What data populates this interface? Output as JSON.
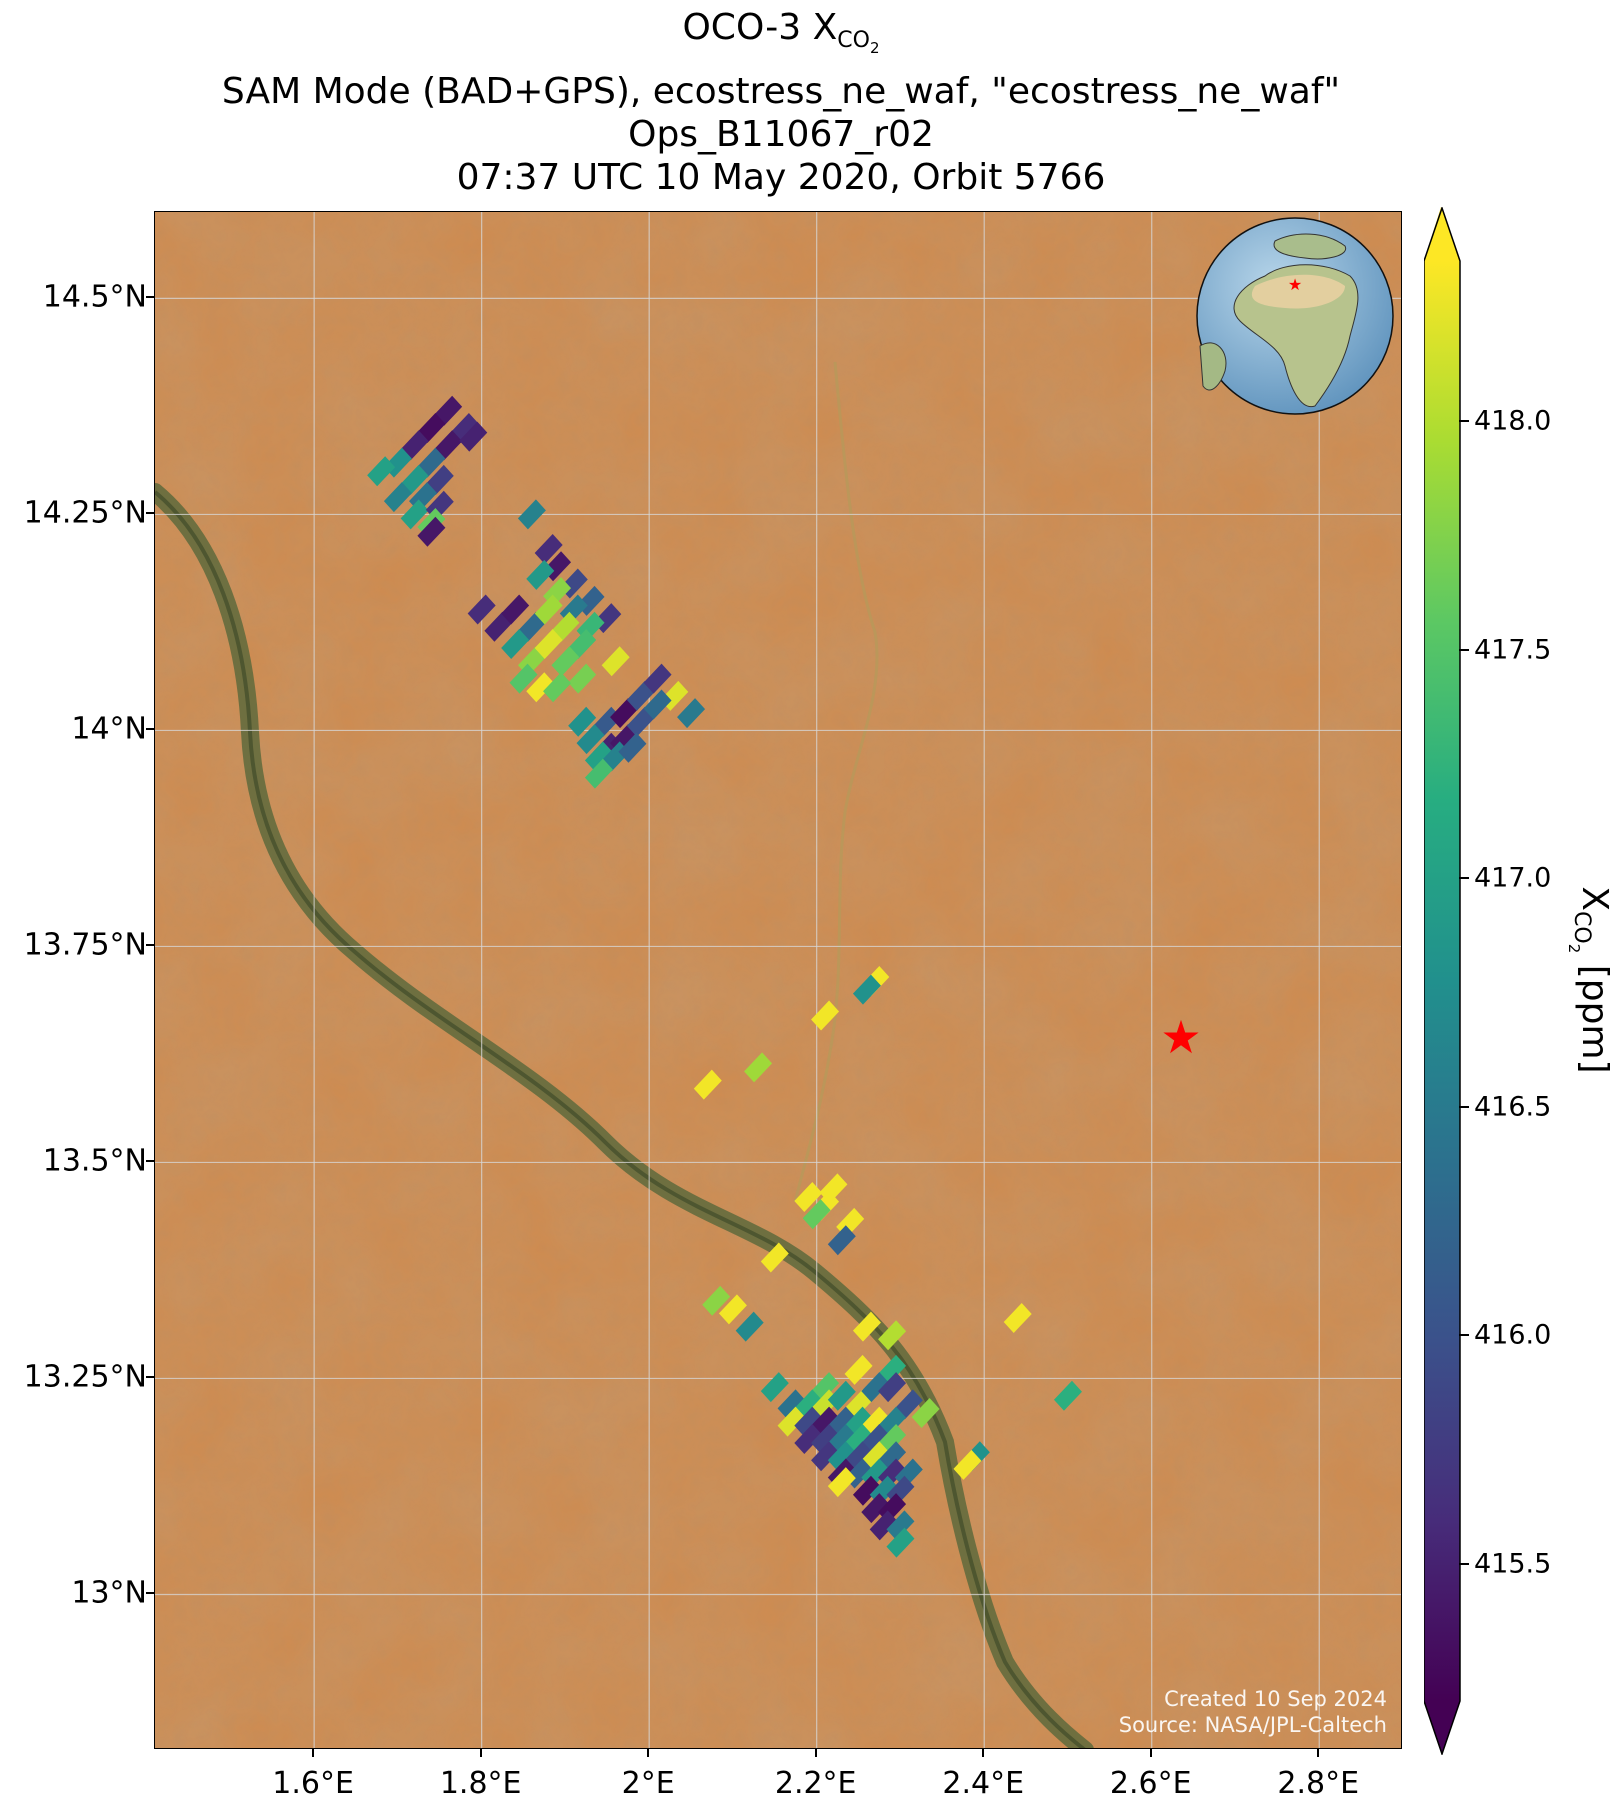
{
  "title": {
    "line1_prefix": "OCO-3 X",
    "line1_sub": "CO",
    "line1_sub2": "2",
    "line2": "SAM Mode (BAD+GPS), ecostress_ne_waf, \"ecostress_ne_waf\"",
    "line3": "Ops_B11067_r02",
    "line4": "07:37 UTC 10 May 2020, Orbit 5766"
  },
  "credits": {
    "created": "Created 10 Sep 2024",
    "source": "Source: NASA/JPL-Caltech"
  },
  "colors": {
    "terrain": "#cf8a4e",
    "river": "#5e6a3c",
    "target_star": "#ff0000",
    "grid": "#d8d8d8"
  },
  "icons": {
    "globe": "globe-inset-icon",
    "target": "star-icon"
  },
  "chart_data": {
    "type": "map",
    "lon_range": [
      1.41,
      2.9
    ],
    "lat_range": [
      12.82,
      14.6
    ],
    "x_ticks": [
      {
        "value": 1.6,
        "label": "1.6°E"
      },
      {
        "value": 1.8,
        "label": "1.8°E"
      },
      {
        "value": 2.0,
        "label": "2°E"
      },
      {
        "value": 2.2,
        "label": "2.2°E"
      },
      {
        "value": 2.4,
        "label": "2.4°E"
      },
      {
        "value": 2.6,
        "label": "2.6°E"
      },
      {
        "value": 2.8,
        "label": "2.8°E"
      }
    ],
    "y_ticks": [
      {
        "value": 14.5,
        "label": "14.5°N"
      },
      {
        "value": 14.25,
        "label": "14.25°N"
      },
      {
        "value": 14.0,
        "label": "14°N"
      },
      {
        "value": 13.75,
        "label": "13.75°N"
      },
      {
        "value": 13.5,
        "label": "13.5°N"
      },
      {
        "value": 13.25,
        "label": "13.25°N"
      },
      {
        "value": 13.0,
        "label": "13°N"
      }
    ],
    "grid": true,
    "target": {
      "lon": 2.635,
      "lat": 13.645
    },
    "colorbar": {
      "label_prefix": "X",
      "label_sub": "CO",
      "label_sub2": "2",
      "label_suffix": " [ppm]",
      "vmin": 415.2,
      "vmax": 418.35,
      "colormap": "viridis",
      "extend": "both",
      "ticks": [
        {
          "value": 415.5,
          "label": "415.5"
        },
        {
          "value": 416.0,
          "label": "416.0"
        },
        {
          "value": 416.5,
          "label": "416.5"
        },
        {
          "value": 417.0,
          "label": "417.0"
        },
        {
          "value": 417.5,
          "label": "417.5"
        },
        {
          "value": 418.0,
          "label": "418.0"
        }
      ]
    },
    "soundings": [
      {
        "lon": 1.76,
        "lat": 14.37,
        "xco2": 415.4
      },
      {
        "lon": 1.78,
        "lat": 14.35,
        "xco2": 415.6
      },
      {
        "lon": 1.74,
        "lat": 14.35,
        "xco2": 415.3
      },
      {
        "lon": 1.72,
        "lat": 14.33,
        "xco2": 415.5
      },
      {
        "lon": 1.76,
        "lat": 14.33,
        "xco2": 415.4
      },
      {
        "lon": 1.7,
        "lat": 14.31,
        "xco2": 416.8
      },
      {
        "lon": 1.74,
        "lat": 14.31,
        "xco2": 416.3
      },
      {
        "lon": 1.79,
        "lat": 14.34,
        "xco2": 415.5
      },
      {
        "lon": 1.68,
        "lat": 14.3,
        "xco2": 417.0
      },
      {
        "lon": 1.72,
        "lat": 14.29,
        "xco2": 416.9
      },
      {
        "lon": 1.75,
        "lat": 14.29,
        "xco2": 415.8
      },
      {
        "lon": 1.7,
        "lat": 14.27,
        "xco2": 416.6
      },
      {
        "lon": 1.73,
        "lat": 14.27,
        "xco2": 416.4
      },
      {
        "lon": 1.72,
        "lat": 14.25,
        "xco2": 417.0
      },
      {
        "lon": 1.75,
        "lat": 14.26,
        "xco2": 415.7
      },
      {
        "lon": 1.74,
        "lat": 14.24,
        "xco2": 417.6
      },
      {
        "lon": 1.74,
        "lat": 14.23,
        "xco2": 415.4
      },
      {
        "lon": 1.86,
        "lat": 14.25,
        "xco2": 416.6
      },
      {
        "lon": 1.88,
        "lat": 14.21,
        "xco2": 415.6
      },
      {
        "lon": 1.89,
        "lat": 14.19,
        "xco2": 415.4
      },
      {
        "lon": 1.91,
        "lat": 14.17,
        "xco2": 415.9
      },
      {
        "lon": 1.93,
        "lat": 14.15,
        "xco2": 416.2
      },
      {
        "lon": 1.95,
        "lat": 14.13,
        "xco2": 415.7
      },
      {
        "lon": 1.87,
        "lat": 14.18,
        "xco2": 416.9
      },
      {
        "lon": 1.89,
        "lat": 14.16,
        "xco2": 417.8
      },
      {
        "lon": 1.91,
        "lat": 14.14,
        "xco2": 416.5
      },
      {
        "lon": 1.93,
        "lat": 14.12,
        "xco2": 417.3
      },
      {
        "lon": 1.8,
        "lat": 14.14,
        "xco2": 415.6
      },
      {
        "lon": 1.82,
        "lat": 14.12,
        "xco2": 415.5
      },
      {
        "lon": 1.84,
        "lat": 14.14,
        "xco2": 415.4
      },
      {
        "lon": 1.86,
        "lat": 14.12,
        "xco2": 416.3
      },
      {
        "lon": 1.88,
        "lat": 14.14,
        "xco2": 417.9
      },
      {
        "lon": 1.9,
        "lat": 14.12,
        "xco2": 418.0
      },
      {
        "lon": 1.92,
        "lat": 14.1,
        "xco2": 417.4
      },
      {
        "lon": 1.84,
        "lat": 14.1,
        "xco2": 416.9
      },
      {
        "lon": 1.86,
        "lat": 14.08,
        "xco2": 417.8
      },
      {
        "lon": 1.88,
        "lat": 14.1,
        "xco2": 418.2
      },
      {
        "lon": 1.9,
        "lat": 14.08,
        "xco2": 417.6
      },
      {
        "lon": 1.92,
        "lat": 14.06,
        "xco2": 417.7
      },
      {
        "lon": 1.85,
        "lat": 14.06,
        "xco2": 417.5
      },
      {
        "lon": 1.87,
        "lat": 14.05,
        "xco2": 418.3
      },
      {
        "lon": 1.89,
        "lat": 14.05,
        "xco2": 417.6
      },
      {
        "lon": 1.96,
        "lat": 14.08,
        "xco2": 418.2
      },
      {
        "lon": 1.95,
        "lat": 14.01,
        "xco2": 416.1
      },
      {
        "lon": 1.97,
        "lat": 14.02,
        "xco2": 415.3
      },
      {
        "lon": 1.99,
        "lat": 14.04,
        "xco2": 416.0
      },
      {
        "lon": 2.01,
        "lat": 14.06,
        "xco2": 415.7
      },
      {
        "lon": 2.03,
        "lat": 14.04,
        "xco2": 418.2
      },
      {
        "lon": 2.05,
        "lat": 14.02,
        "xco2": 416.5
      },
      {
        "lon": 1.93,
        "lat": 13.99,
        "xco2": 416.7
      },
      {
        "lon": 1.95,
        "lat": 13.98,
        "xco2": 415.5
      },
      {
        "lon": 1.97,
        "lat": 13.99,
        "xco2": 415.4
      },
      {
        "lon": 1.99,
        "lat": 14.01,
        "xco2": 416.0
      },
      {
        "lon": 2.01,
        "lat": 14.03,
        "xco2": 416.3
      },
      {
        "lon": 1.92,
        "lat": 14.01,
        "xco2": 416.8
      },
      {
        "lon": 1.94,
        "lat": 13.97,
        "xco2": 417.0
      },
      {
        "lon": 1.96,
        "lat": 13.97,
        "xco2": 416.6
      },
      {
        "lon": 1.98,
        "lat": 13.98,
        "xco2": 416.2
      },
      {
        "lon": 1.94,
        "lat": 13.95,
        "xco2": 417.4
      },
      {
        "lon": 2.27,
        "lat": 13.71,
        "xco2": 418.3
      },
      {
        "lon": 2.26,
        "lat": 13.7,
        "xco2": 416.8
      },
      {
        "lon": 2.21,
        "lat": 13.67,
        "xco2": 418.3
      },
      {
        "lon": 2.13,
        "lat": 13.61,
        "xco2": 417.9
      },
      {
        "lon": 2.07,
        "lat": 13.59,
        "xco2": 418.3
      },
      {
        "lon": 2.19,
        "lat": 13.46,
        "xco2": 418.3
      },
      {
        "lon": 2.21,
        "lat": 13.45,
        "xco2": 418.3
      },
      {
        "lon": 2.22,
        "lat": 13.47,
        "xco2": 418.3
      },
      {
        "lon": 2.2,
        "lat": 13.44,
        "xco2": 417.6
      },
      {
        "lon": 2.24,
        "lat": 13.43,
        "xco2": 418.3
      },
      {
        "lon": 2.23,
        "lat": 13.41,
        "xco2": 416.2
      },
      {
        "lon": 2.15,
        "lat": 13.39,
        "xco2": 418.3
      },
      {
        "lon": 2.08,
        "lat": 13.34,
        "xco2": 417.8
      },
      {
        "lon": 2.1,
        "lat": 13.33,
        "xco2": 418.3
      },
      {
        "lon": 2.12,
        "lat": 13.31,
        "xco2": 416.7
      },
      {
        "lon": 2.26,
        "lat": 13.31,
        "xco2": 418.3
      },
      {
        "lon": 2.29,
        "lat": 13.3,
        "xco2": 418.0
      },
      {
        "lon": 2.44,
        "lat": 13.32,
        "xco2": 418.3
      },
      {
        "lon": 2.25,
        "lat": 13.26,
        "xco2": 418.3
      },
      {
        "lon": 2.29,
        "lat": 13.26,
        "xco2": 417.2
      },
      {
        "lon": 2.21,
        "lat": 13.24,
        "xco2": 417.5
      },
      {
        "lon": 2.15,
        "lat": 13.24,
        "xco2": 417.0
      },
      {
        "lon": 2.17,
        "lat": 13.22,
        "xco2": 416.4
      },
      {
        "lon": 2.19,
        "lat": 13.22,
        "xco2": 417.2
      },
      {
        "lon": 2.21,
        "lat": 13.22,
        "xco2": 418.1
      },
      {
        "lon": 2.23,
        "lat": 13.23,
        "xco2": 416.9
      },
      {
        "lon": 2.25,
        "lat": 13.22,
        "xco2": 418.2
      },
      {
        "lon": 2.27,
        "lat": 13.24,
        "xco2": 416.4
      },
      {
        "lon": 2.29,
        "lat": 13.24,
        "xco2": 415.8
      },
      {
        "lon": 2.31,
        "lat": 13.22,
        "xco2": 416.0
      },
      {
        "lon": 2.33,
        "lat": 13.21,
        "xco2": 417.8
      },
      {
        "lon": 2.17,
        "lat": 13.2,
        "xco2": 418.2
      },
      {
        "lon": 2.19,
        "lat": 13.2,
        "xco2": 415.9
      },
      {
        "lon": 2.21,
        "lat": 13.2,
        "xco2": 415.4
      },
      {
        "lon": 2.23,
        "lat": 13.2,
        "xco2": 416.2
      },
      {
        "lon": 2.25,
        "lat": 13.2,
        "xco2": 417.0
      },
      {
        "lon": 2.27,
        "lat": 13.2,
        "xco2": 418.3
      },
      {
        "lon": 2.29,
        "lat": 13.2,
        "xco2": 416.6
      },
      {
        "lon": 2.19,
        "lat": 13.18,
        "xco2": 415.6
      },
      {
        "lon": 2.21,
        "lat": 13.18,
        "xco2": 415.8
      },
      {
        "lon": 2.23,
        "lat": 13.18,
        "xco2": 416.5
      },
      {
        "lon": 2.25,
        "lat": 13.18,
        "xco2": 417.2
      },
      {
        "lon": 2.27,
        "lat": 13.18,
        "xco2": 416.0
      },
      {
        "lon": 2.29,
        "lat": 13.18,
        "xco2": 417.6
      },
      {
        "lon": 2.21,
        "lat": 13.16,
        "xco2": 415.7
      },
      {
        "lon": 2.23,
        "lat": 13.16,
        "xco2": 416.8
      },
      {
        "lon": 2.25,
        "lat": 13.16,
        "xco2": 415.9
      },
      {
        "lon": 2.27,
        "lat": 13.16,
        "xco2": 418.2
      },
      {
        "lon": 2.29,
        "lat": 13.16,
        "xco2": 416.3
      },
      {
        "lon": 2.23,
        "lat": 13.14,
        "xco2": 415.4
      },
      {
        "lon": 2.25,
        "lat": 13.14,
        "xco2": 416.2
      },
      {
        "lon": 2.27,
        "lat": 13.14,
        "xco2": 416.9
      },
      {
        "lon": 2.29,
        "lat": 13.14,
        "xco2": 415.6
      },
      {
        "lon": 2.31,
        "lat": 13.14,
        "xco2": 416.4
      },
      {
        "lon": 2.23,
        "lat": 13.13,
        "xco2": 418.3
      },
      {
        "lon": 2.26,
        "lat": 13.12,
        "xco2": 415.3
      },
      {
        "lon": 2.28,
        "lat": 13.12,
        "xco2": 416.7
      },
      {
        "lon": 2.3,
        "lat": 13.12,
        "xco2": 415.9
      },
      {
        "lon": 2.27,
        "lat": 13.1,
        "xco2": 415.4
      },
      {
        "lon": 2.29,
        "lat": 13.1,
        "xco2": 415.3
      },
      {
        "lon": 2.28,
        "lat": 13.08,
        "xco2": 415.5
      },
      {
        "lon": 2.3,
        "lat": 13.08,
        "xco2": 416.5
      },
      {
        "lon": 2.3,
        "lat": 13.06,
        "xco2": 417.0
      },
      {
        "lon": 2.39,
        "lat": 13.16,
        "xco2": 416.8
      },
      {
        "lon": 2.38,
        "lat": 13.15,
        "xco2": 418.3
      },
      {
        "lon": 2.5,
        "lat": 13.23,
        "xco2": 417.2
      }
    ]
  }
}
